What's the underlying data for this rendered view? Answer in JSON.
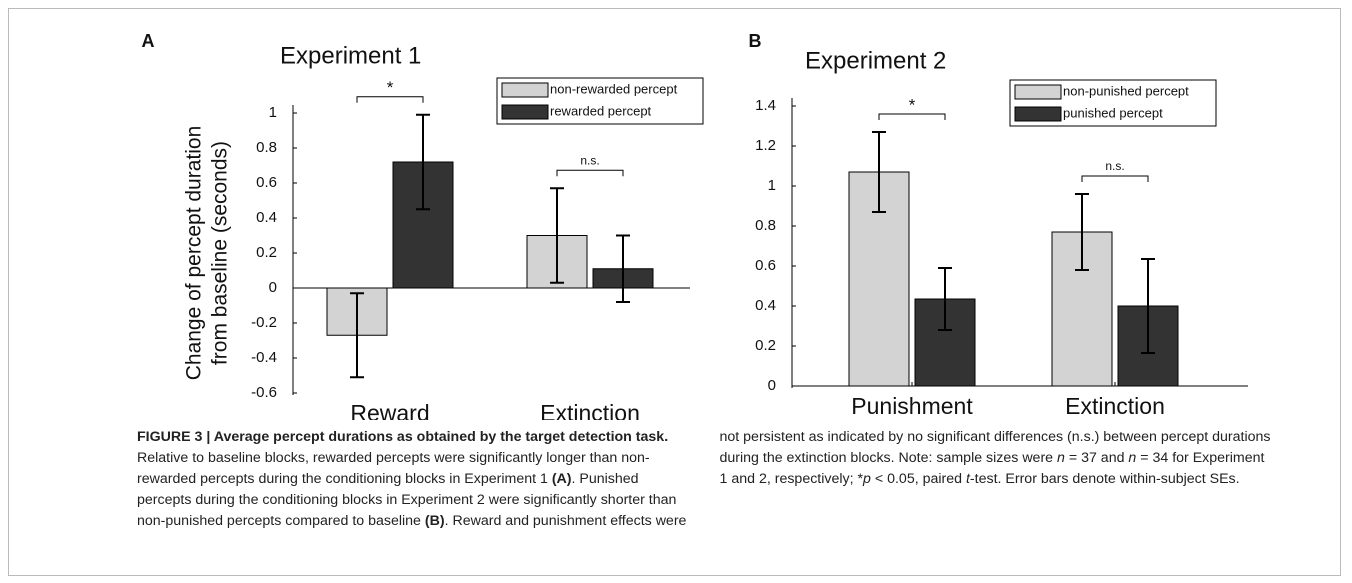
{
  "chart_data": [
    {
      "type": "bar",
      "panel": "A",
      "title": "Experiment 1",
      "ylabel": [
        "Change of percept duration",
        "from baseline (seconds)"
      ],
      "categories": [
        "Reward",
        "Extinction"
      ],
      "series": [
        {
          "name": "non-rewarded percept",
          "color": "#d3d3d3",
          "values": [
            -0.27,
            0.3
          ],
          "errors": [
            0.24,
            0.27
          ]
        },
        {
          "name": "rewarded percept",
          "color": "#333333",
          "values": [
            0.72,
            0.11
          ],
          "errors": [
            0.27,
            0.19
          ]
        }
      ],
      "significance": [
        "*",
        "n.s."
      ],
      "ylim": [
        -0.6,
        1
      ],
      "yticks": [
        -0.6,
        -0.4,
        -0.2,
        0,
        0.2,
        0.4,
        0.6,
        0.8,
        1
      ],
      "legend": "upper right"
    },
    {
      "type": "bar",
      "panel": "B",
      "title": "Experiment 2",
      "categories": [
        "Punishment",
        "Extinction"
      ],
      "series": [
        {
          "name": "non-punished percept",
          "color": "#d3d3d3",
          "values": [
            1.07,
            0.77
          ],
          "errors": [
            0.2,
            0.19
          ]
        },
        {
          "name": "punished percept",
          "color": "#333333",
          "values": [
            0.435,
            0.4
          ],
          "errors": [
            0.155,
            0.235
          ]
        }
      ],
      "significance": [
        "*",
        "n.s."
      ],
      "ylim": [
        0,
        1.4
      ],
      "yticks": [
        0,
        0.2,
        0.4,
        0.6,
        0.8,
        1,
        1.2,
        1.4
      ],
      "legend": "upper right"
    }
  ],
  "caption": {
    "parts": [
      "FIGURE 3 | Average percept durations as obtained by the target detection task.",
      " Relative to baseline blocks, rewarded percepts were significantly longer than non-rewarded percepts during the conditioning blocks in Experiment 1 ",
      "(A)",
      ". Punished percepts during the conditioning blocks in Experiment 2 were significantly shorter than non-punished percepts compared to baseline ",
      "(B)",
      ". Reward and punishment effects were not persistent as indicated by no significant differences (n.s.) between percept durations during the extinction blocks. Note: sample sizes were ",
      "n",
      " = 37 and ",
      "n",
      " = 34 for Experiment 1 and 2, respectively; *",
      "p",
      " < 0.05, paired ",
      "t",
      "-test. Error bars denote within-subject SEs."
    ]
  }
}
